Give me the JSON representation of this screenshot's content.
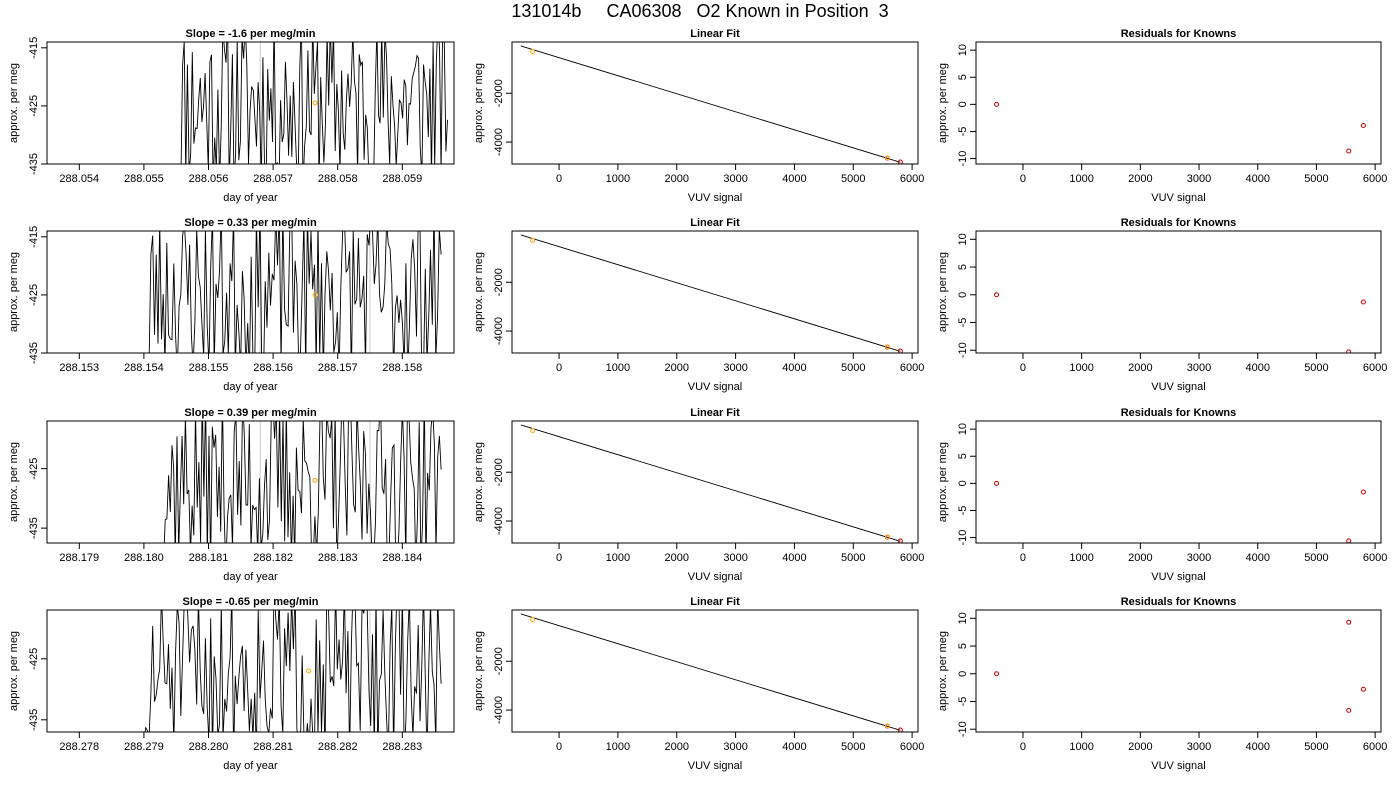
{
  "title": "131014b     CA06308   O2 Known in Position  3",
  "colors": {
    "line": "#000000",
    "known_point": "#ffa500",
    "residual_point": "#cc0000",
    "fit_point": "#cc0000",
    "vline": "#cccccc"
  },
  "chart_data": [
    {
      "type": "line",
      "title": "Slope =  -1.6  per meg/min",
      "xlabel": "day of year",
      "ylabel": "approx. per meg",
      "xlim": [
        288.0535,
        288.0598
      ],
      "ylim": [
        -435,
        -414
      ],
      "xticks": [
        "288.054",
        "288.055",
        "288.056",
        "288.057",
        "288.058",
        "288.059"
      ],
      "yticks": [
        "-415",
        "-425",
        "-435"
      ],
      "x_start": 288.0555,
      "x_end": 288.0597,
      "seed": 11,
      "vlines": [
        288.0568
      ],
      "marker": {
        "x": 288.05765,
        "y": -424.5
      }
    },
    {
      "type": "line",
      "title": "Linear Fit",
      "xlabel": "VUV signal",
      "ylabel": "approx. per meg",
      "xlim": [
        -800,
        6100
      ],
      "ylim": [
        -4900,
        100
      ],
      "xticks": [
        "0",
        "1000",
        "2000",
        "3000",
        "4000",
        "5000",
        "6000"
      ],
      "yticks": [
        "-2000",
        "-4000"
      ],
      "fit_line": [
        [
          -650,
          -60
        ],
        [
          5800,
          -4830
        ]
      ],
      "points": [
        {
          "x": -450,
          "y": -290,
          "color": "orange"
        },
        {
          "x": 5580,
          "y": -4660,
          "color": "red"
        },
        {
          "x": 5580,
          "y": -4650,
          "color": "orange"
        },
        {
          "x": 5800,
          "y": -4820,
          "color": "red"
        }
      ]
    },
    {
      "type": "scatter",
      "title": "Residuals for Knowns",
      "xlabel": "VUV signal",
      "ylabel": "approx. per meg",
      "xlim": [
        -800,
        6100
      ],
      "ylim": [
        -11,
        11.5
      ],
      "xticks": [
        "0",
        "1000",
        "2000",
        "3000",
        "4000",
        "5000",
        "6000"
      ],
      "yticks": [
        "-10",
        "-5",
        "0",
        "5",
        "10"
      ],
      "points": [
        {
          "x": -450,
          "y": 0
        },
        {
          "x": 5550,
          "y": -8.6
        },
        {
          "x": 5800,
          "y": -3.9
        }
      ]
    },
    {
      "type": "line",
      "title": "Slope =  0.33  per meg/min",
      "xlabel": "day of year",
      "ylabel": "approx. per meg",
      "xlim": [
        288.1525,
        288.1588
      ],
      "ylim": [
        -435,
        -414
      ],
      "xticks": [
        "288.153",
        "288.154",
        "288.155",
        "288.156",
        "288.157",
        "288.158"
      ],
      "yticks": [
        "-415",
        "-425",
        "-435"
      ],
      "x_start": 288.154,
      "x_end": 288.1586,
      "seed": 23,
      "vlines": [
        288.1558,
        288.1575
      ],
      "marker": {
        "x": 288.15665,
        "y": -425
      }
    },
    {
      "type": "line",
      "title": "Linear Fit",
      "xlabel": "VUV signal",
      "ylabel": "approx. per meg",
      "xlim": [
        -800,
        6100
      ],
      "ylim": [
        -4900,
        100
      ],
      "xticks": [
        "0",
        "1000",
        "2000",
        "3000",
        "4000",
        "5000",
        "6000"
      ],
      "yticks": [
        "-2000",
        "-4000"
      ],
      "fit_line": [
        [
          -650,
          -60
        ],
        [
          5800,
          -4830
        ]
      ],
      "points": [
        {
          "x": -450,
          "y": -290,
          "color": "orange"
        },
        {
          "x": 5580,
          "y": -4660,
          "color": "red"
        },
        {
          "x": 5580,
          "y": -4650,
          "color": "orange"
        },
        {
          "x": 5800,
          "y": -4820,
          "color": "red"
        }
      ]
    },
    {
      "type": "scatter",
      "title": "Residuals for Knowns",
      "xlabel": "VUV signal",
      "ylabel": "approx. per meg",
      "xlim": [
        -800,
        6100
      ],
      "ylim": [
        -10.5,
        11.5
      ],
      "xticks": [
        "0",
        "1000",
        "2000",
        "3000",
        "4000",
        "5000",
        "6000"
      ],
      "yticks": [
        "-10",
        "-5",
        "0",
        "5",
        "10"
      ],
      "points": [
        {
          "x": -450,
          "y": 0
        },
        {
          "x": 5550,
          "y": -10.3
        },
        {
          "x": 5800,
          "y": -1.3
        }
      ]
    },
    {
      "type": "line",
      "title": "Slope =  0.39  per meg/min",
      "xlabel": "day of year",
      "ylabel": "approx. per meg",
      "xlim": [
        288.1785,
        288.1848
      ],
      "ylim": [
        -437.5,
        -417
      ],
      "xticks": [
        "288.179",
        "288.180",
        "288.181",
        "288.182",
        "288.183",
        "288.184"
      ],
      "yticks": [
        "-425",
        "-435"
      ],
      "x_start": 288.1802,
      "x_end": 288.1846,
      "seed": 37,
      "vlines": [
        288.1818,
        288.1835
      ],
      "marker": {
        "x": 288.18265,
        "y": -427
      }
    },
    {
      "type": "line",
      "title": "Linear Fit",
      "xlabel": "VUV signal",
      "ylabel": "approx. per meg",
      "xlim": [
        -800,
        6100
      ],
      "ylim": [
        -4900,
        100
      ],
      "xticks": [
        "0",
        "1000",
        "2000",
        "3000",
        "4000",
        "5000",
        "6000"
      ],
      "yticks": [
        "-2000",
        "-4000"
      ],
      "fit_line": [
        [
          -650,
          -60
        ],
        [
          5800,
          -4830
        ]
      ],
      "points": [
        {
          "x": -450,
          "y": -290,
          "color": "orange"
        },
        {
          "x": 5580,
          "y": -4660,
          "color": "red"
        },
        {
          "x": 5580,
          "y": -4650,
          "color": "orange"
        },
        {
          "x": 5800,
          "y": -4820,
          "color": "red"
        }
      ]
    },
    {
      "type": "scatter",
      "title": "Residuals for Knowns",
      "xlabel": "VUV signal",
      "ylabel": "approx. per meg",
      "xlim": [
        -800,
        6100
      ],
      "ylim": [
        -11,
        11.5
      ],
      "xticks": [
        "0",
        "1000",
        "2000",
        "3000",
        "4000",
        "5000",
        "6000"
      ],
      "yticks": [
        "-10",
        "-5",
        "0",
        "5",
        "10"
      ],
      "points": [
        {
          "x": -450,
          "y": 0
        },
        {
          "x": 5550,
          "y": -10.6
        },
        {
          "x": 5800,
          "y": -1.6
        }
      ]
    },
    {
      "type": "line",
      "title": "Slope =  -0.65  per meg/min",
      "xlabel": "day of year",
      "ylabel": "approx. per meg",
      "xlim": [
        288.2775,
        288.2838
      ],
      "ylim": [
        -437,
        -417
      ],
      "xticks": [
        "288.278",
        "288.279",
        "288.280",
        "288.281",
        "288.282",
        "288.283"
      ],
      "yticks": [
        "-425",
        "-435"
      ],
      "x_start": 288.279,
      "x_end": 288.2836,
      "seed": 51,
      "vlines": [
        288.2808,
        288.2825
      ],
      "marker": {
        "x": 288.28155,
        "y": -427
      }
    },
    {
      "type": "line",
      "title": "Linear Fit",
      "xlabel": "VUV signal",
      "ylabel": "approx. per meg",
      "xlim": [
        -800,
        6100
      ],
      "ylim": [
        -4900,
        100
      ],
      "xticks": [
        "0",
        "1000",
        "2000",
        "3000",
        "4000",
        "5000",
        "6000"
      ],
      "yticks": [
        "-2000",
        "-4000"
      ],
      "fit_line": [
        [
          -650,
          -60
        ],
        [
          5800,
          -4830
        ]
      ],
      "points": [
        {
          "x": -450,
          "y": -290,
          "color": "orange"
        },
        {
          "x": 5580,
          "y": -4660,
          "color": "red"
        },
        {
          "x": 5580,
          "y": -4650,
          "color": "orange"
        },
        {
          "x": 5800,
          "y": -4820,
          "color": "red"
        }
      ]
    },
    {
      "type": "scatter",
      "title": "Residuals for Knowns",
      "xlabel": "VUV signal",
      "ylabel": "approx. per meg",
      "xlim": [
        -800,
        6100
      ],
      "ylim": [
        -10.5,
        11.5
      ],
      "xticks": [
        "0",
        "1000",
        "2000",
        "3000",
        "4000",
        "5000",
        "6000"
      ],
      "yticks": [
        "-10",
        "-5",
        "0",
        "5",
        "10"
      ],
      "points": [
        {
          "x": -450,
          "y": 0
        },
        {
          "x": 5550,
          "y": 9.3
        },
        {
          "x": 5550,
          "y": -6.6
        },
        {
          "x": 5800,
          "y": -2.8
        }
      ]
    }
  ]
}
